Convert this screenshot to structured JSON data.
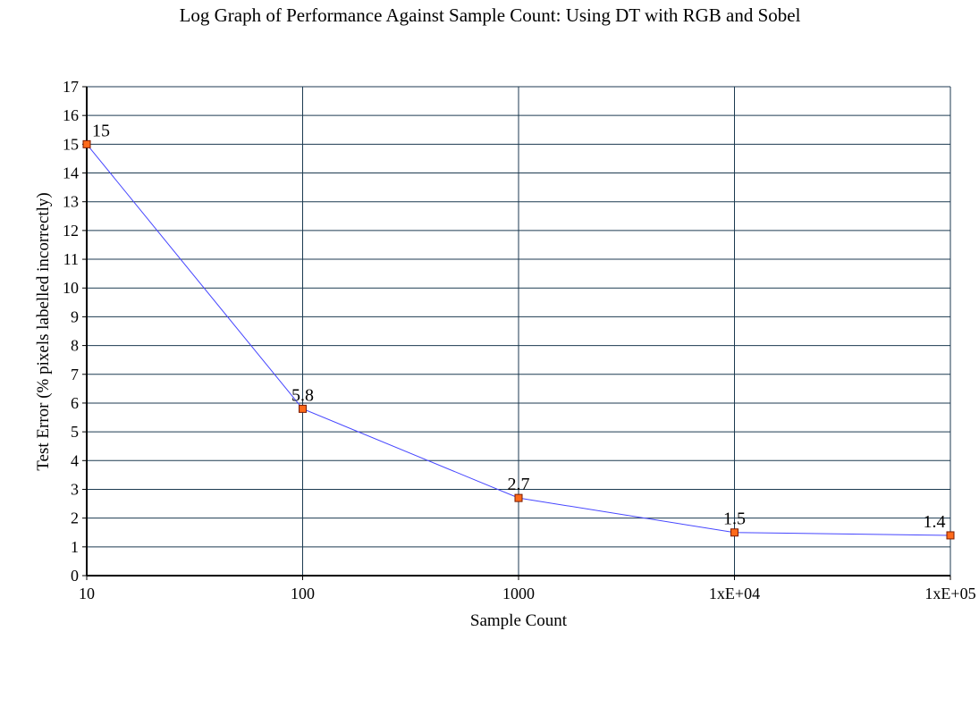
{
  "chart_data": {
    "type": "line",
    "title": "Log Graph of Performance Against Sample Count: Using DT with RGB and Sobel",
    "xlabel": "Sample Count",
    "ylabel": "Test Error (% pixels labelled incorrectly)",
    "x_scale": "log",
    "xlim": [
      10,
      100000
    ],
    "ylim": [
      0,
      17
    ],
    "x_ticks": [
      10,
      100,
      1000,
      10000,
      100000
    ],
    "x_tick_labels": [
      "10",
      "100",
      "1000",
      "1xE+04",
      "1xE+05"
    ],
    "y_ticks": [
      0,
      1,
      2,
      3,
      4,
      5,
      6,
      7,
      8,
      9,
      10,
      11,
      12,
      13,
      14,
      15,
      16,
      17
    ],
    "y_tick_labels": [
      "0",
      "1",
      "2",
      "3",
      "4",
      "5",
      "6",
      "7",
      "8",
      "9",
      "10",
      "11",
      "12",
      "13",
      "14",
      "15",
      "16",
      "17"
    ],
    "grid": true,
    "legend": "none",
    "series": [
      {
        "x": [
          10,
          100,
          1000,
          10000,
          100000
        ],
        "y": [
          15,
          5.8,
          2.7,
          1.5,
          1.4
        ],
        "data_labels": [
          "15",
          "5.8",
          "2.7",
          "1.5",
          "1.4"
        ],
        "line_color": "#4646ff",
        "marker_color": "#ff6a1a"
      }
    ],
    "colors": {
      "grid": "#1c3a50",
      "axis": "#000000",
      "marker_edge": "#7a1a00"
    }
  }
}
